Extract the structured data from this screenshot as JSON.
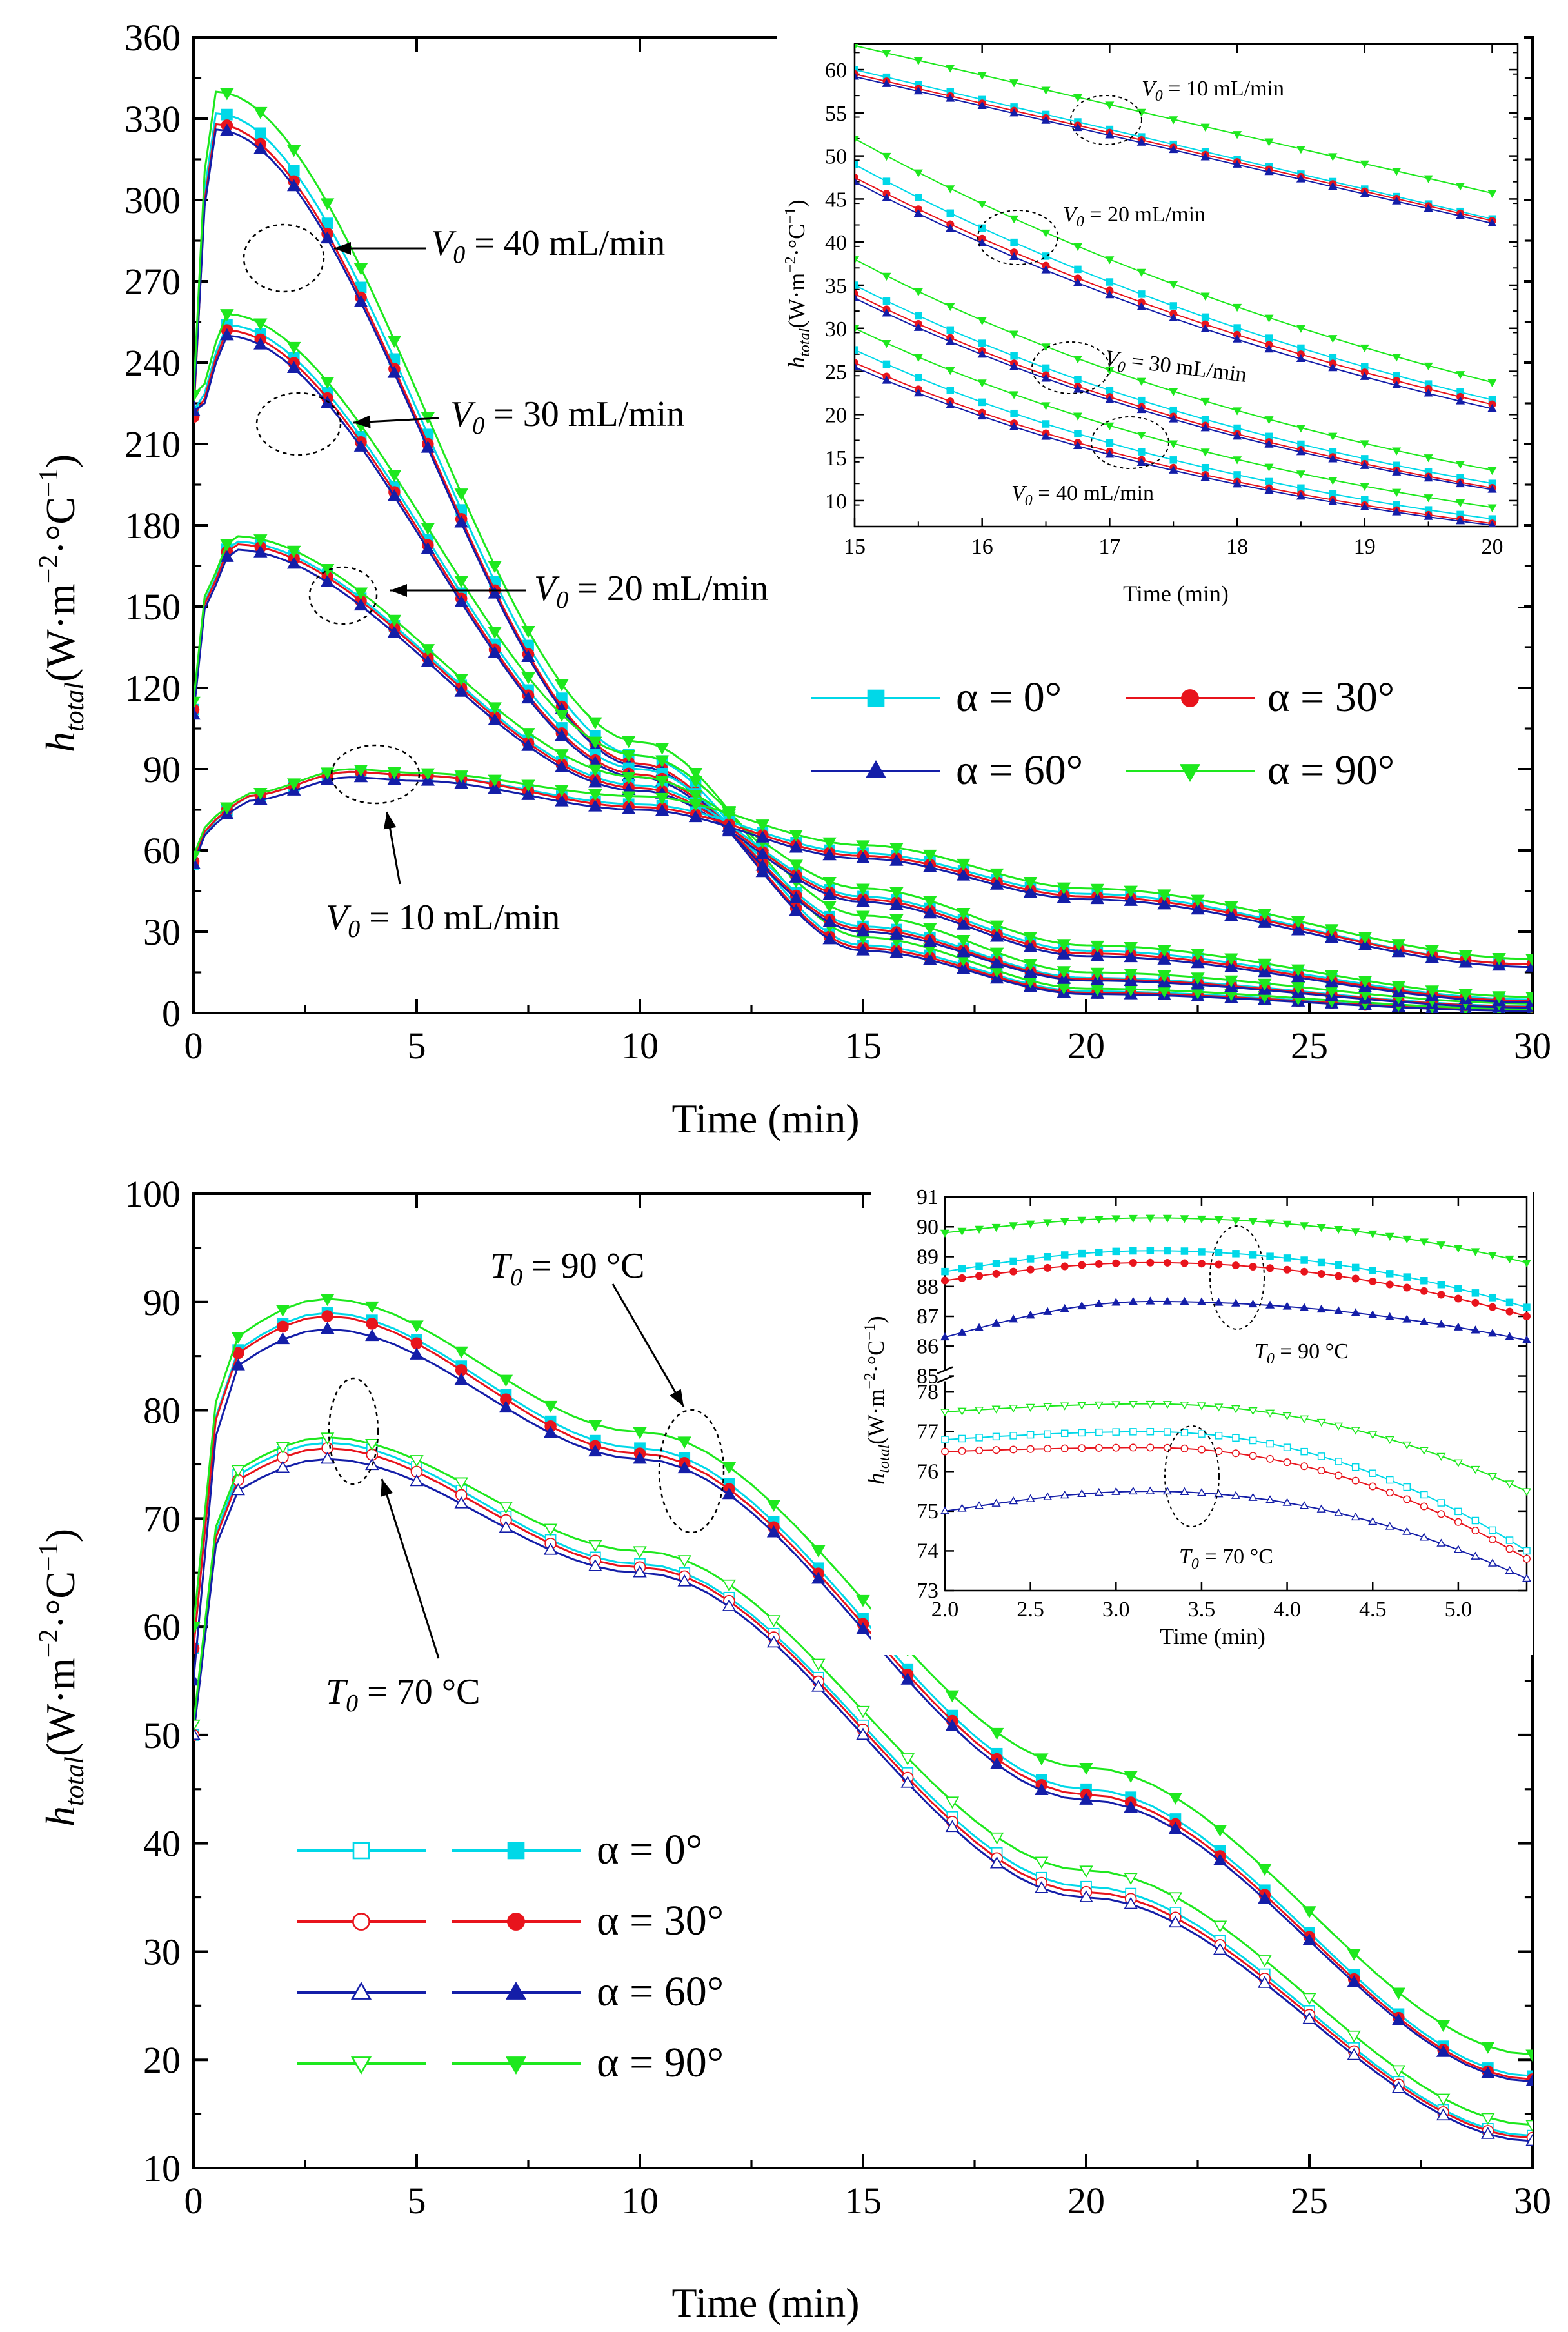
{
  "chart_data": [
    {
      "id": "top-main",
      "type": "line",
      "xlabel": "Time (min)",
      "ylabel": "h_total (W·m^-2·°C^-1)",
      "xlim": [
        0,
        30
      ],
      "ylim": [
        0,
        360
      ],
      "xticks": [
        "0",
        "5",
        "10",
        "15",
        "20",
        "25",
        "30"
      ],
      "yticks": [
        "0",
        "30",
        "60",
        "90",
        "120",
        "150",
        "180",
        "210",
        "240",
        "270",
        "300",
        "330",
        "360"
      ],
      "colors": {
        "a0": "#00d8e8",
        "a30": "#e8141c",
        "a60": "#141ea8",
        "a90": "#1ee81e"
      },
      "legend": [
        "α = 0°",
        "α = 30°",
        "α = 60°",
        "α = 90°"
      ],
      "annotations": [
        {
          "sub": "0",
          "text": " = 40 mL/min"
        },
        {
          "sub": "0",
          "text": " = 30 mL/min"
        },
        {
          "sub": "0",
          "text": " = 20 mL/min"
        },
        {
          "sub": "0",
          "text": " = 10 mL/min"
        }
      ],
      "groups": [
        {
          "name": "V0 = 40 mL/min",
          "peak_time": 0.5,
          "peaks": [
            332,
            328,
            326,
            340
          ],
          "at_10": [
            95,
            92,
            91,
            100
          ],
          "at_15": [
            25,
            24,
            23,
            28
          ],
          "at_20": [
            8,
            7.5,
            7,
            9
          ],
          "at_30": [
            1,
            1,
            0.8,
            1.5
          ]
        },
        {
          "name": "V0 = 30 mL/min",
          "peak_time": 0.7,
          "peaks": [
            254,
            252,
            250,
            258
          ],
          "at_10": [
            90,
            88,
            87,
            95
          ],
          "at_15": [
            32,
            31,
            30,
            36
          ],
          "at_20": [
            13,
            12.5,
            12,
            15
          ],
          "at_30": [
            2.5,
            2.3,
            2,
            3.5
          ]
        },
        {
          "name": "V0 = 20 mL/min",
          "peak_time": 0.9,
          "peaks": [
            174,
            173,
            171,
            176
          ],
          "at_10": [
            84,
            83,
            82,
            87
          ],
          "at_15": [
            43,
            42,
            41,
            46
          ],
          "at_20": [
            23,
            22,
            21,
            25
          ],
          "at_30": [
            5,
            4.5,
            4,
            6
          ]
        },
        {
          "name": "V0 = 10 mL/min",
          "peak_time": 3.5,
          "peaks": [
            89,
            89,
            87,
            90
          ],
          "at_10": [
            77,
            76,
            75,
            80
          ],
          "at_15": [
            59,
            58,
            57,
            62
          ],
          "at_20": [
            44,
            43,
            42,
            46
          ],
          "at_30": [
            18,
            18,
            17,
            20
          ]
        }
      ]
    },
    {
      "id": "top-inset",
      "type": "line",
      "xlabel": "Time (min)",
      "ylabel": "h_total (W·m^-2·°C^-1)",
      "xlim": [
        15,
        20.2
      ],
      "ylim": [
        7,
        63
      ],
      "xticks": [
        "15",
        "16",
        "17",
        "18",
        "19",
        "20"
      ],
      "yticks": [
        "10",
        "15",
        "20",
        "25",
        "30",
        "35",
        "40",
        "45",
        "50",
        "55",
        "60"
      ],
      "annotations": [
        {
          "sub": "0",
          "text": " = 10 mL/min"
        },
        {
          "sub": "0",
          "text": " = 20 mL/min"
        },
        {
          "sub": "0",
          "text": " = 30 mL/min"
        },
        {
          "sub": "0",
          "text": " = 40 mL/min"
        }
      ],
      "groups": [
        {
          "name": "V0 = 10 mL/min",
          "start": [
            60,
            59.5,
            59.2,
            62.8
          ],
          "end": [
            42,
            41.8,
            41.5,
            45
          ]
        },
        {
          "name": "V0 = 20 mL/min",
          "start": [
            49,
            47.5,
            47,
            52
          ],
          "end": [
            21,
            20.5,
            20,
            23
          ]
        },
        {
          "name": "V0 = 30 mL/min",
          "start": [
            35,
            34,
            33.5,
            38
          ],
          "end": [
            11.5,
            11,
            10.8,
            13
          ]
        },
        {
          "name": "V0 = 40 mL/min",
          "start": [
            27.5,
            26,
            25.5,
            30
          ],
          "end": [
            7.5,
            7,
            6.8,
            8.8
          ]
        }
      ]
    },
    {
      "id": "bottom-main",
      "type": "line",
      "xlabel": "Time (min)",
      "ylabel": "h_total (W·m^-2·°C^-1)",
      "xlim": [
        0,
        30
      ],
      "ylim": [
        10,
        100
      ],
      "xticks": [
        "0",
        "5",
        "10",
        "15",
        "20",
        "25",
        "30"
      ],
      "yticks": [
        "10",
        "20",
        "30",
        "40",
        "50",
        "60",
        "70",
        "80",
        "90",
        "100"
      ],
      "legend": [
        "α = 0°",
        "α = 30°",
        "α = 60°",
        "α = 90°"
      ],
      "annotations": [
        {
          "sub": "0",
          "text": " = 90 °C"
        },
        {
          "sub": "0",
          "text": " = 70 °C"
        }
      ],
      "groups": [
        {
          "name": "T0 = 90 °C",
          "filled": true,
          "peaks": [
            89,
            88.7,
            87.5,
            90.3
          ],
          "at_10": [
            76.5,
            76,
            75.5,
            78
          ],
          "at_20": [
            45,
            44.5,
            44,
            47
          ],
          "at_30": [
            18.5,
            18.2,
            18,
            20.5
          ]
        },
        {
          "name": "T0 = 70 °C",
          "filled": false,
          "peaks": [
            77,
            76.5,
            75.5,
            77.5
          ],
          "at_10": [
            65.8,
            65.5,
            65,
            67
          ],
          "at_20": [
            36,
            35.5,
            35,
            37.5
          ],
          "at_30": [
            13,
            12.8,
            12.5,
            14
          ]
        }
      ]
    },
    {
      "id": "bottom-inset",
      "type": "line",
      "xlabel": "Time (min)",
      "ylabel": "h_total (W·m^-2·°C^-1)",
      "xlim": [
        2.0,
        5.4
      ],
      "ylim": [
        73,
        91
      ],
      "xticks": [
        "2.0",
        "2.5",
        "3.0",
        "3.5",
        "4.0",
        "4.5",
        "5.0"
      ],
      "yticks_upper": [
        "85",
        "86",
        "87",
        "88",
        "89",
        "90",
        "91"
      ],
      "yticks_lower": [
        "73",
        "74",
        "75",
        "76",
        "77",
        "78"
      ],
      "annotations": [
        {
          "sub": "0",
          "text": " = 90 °C"
        },
        {
          "sub": "0",
          "text": " = 70 °C"
        }
      ],
      "groups": [
        {
          "name": "T0 = 90 °C",
          "filled": true,
          "start": [
            88.5,
            88.2,
            86.3,
            89.8
          ],
          "peak": [
            89.2,
            88.8,
            87.5,
            90.3
          ],
          "end": [
            87.3,
            87.0,
            86.2,
            88.8
          ]
        },
        {
          "name": "T0 = 70 °C",
          "filled": false,
          "start": [
            76.8,
            76.5,
            75.0,
            77.5
          ],
          "peak": [
            77.0,
            76.6,
            75.5,
            77.7
          ],
          "end": [
            74.0,
            73.8,
            73.3,
            75.5
          ]
        }
      ]
    }
  ]
}
